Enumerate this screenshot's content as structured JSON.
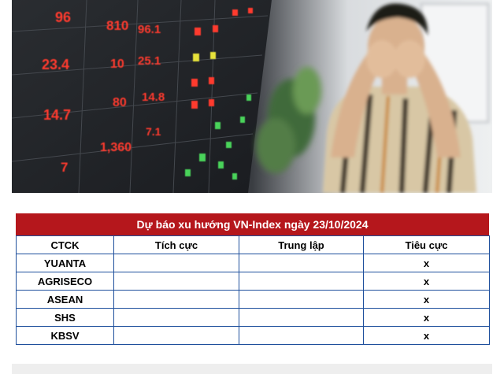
{
  "photo": {
    "board_numbers": [
      {
        "text": "96",
        "color": "#ff3a2e"
      },
      {
        "text": "810",
        "color": "#ff3a2e"
      },
      {
        "text": "96.1",
        "color": "#ff3a2e"
      },
      {
        "text": "23.4",
        "color": "#ff3a2e"
      },
      {
        "text": "10",
        "color": "#ff3a2e"
      },
      {
        "text": "25.1",
        "color": "#ff3a2e"
      },
      {
        "text": "80",
        "color": "#ff3a2e"
      },
      {
        "text": "14.8",
        "color": "#ff3a2e"
      },
      {
        "text": "14.7",
        "color": "#ff3a2e"
      },
      {
        "text": "1,360",
        "color": "#ff3a2e"
      },
      {
        "text": "7.1",
        "color": "#ff3a2e"
      },
      {
        "text": "7",
        "color": "#ff3a2e"
      }
    ]
  },
  "table": {
    "title": "Dự báo xu hướng VN-Index ngày 23/10/2024",
    "columns": [
      "CTCK",
      "Tích cực",
      "Trung lập",
      "Tiêu cực"
    ],
    "rows": [
      [
        "YUANTA",
        "",
        "",
        "x"
      ],
      [
        "AGRISECO",
        "",
        "",
        "x"
      ],
      [
        "ASEAN",
        "",
        "",
        "x"
      ],
      [
        "SHS",
        "",
        "",
        "x"
      ],
      [
        "KBSV",
        "",
        "",
        "x"
      ]
    ]
  },
  "colors": {
    "title_bg": "#b5171c",
    "border": "#1e4f9c"
  }
}
